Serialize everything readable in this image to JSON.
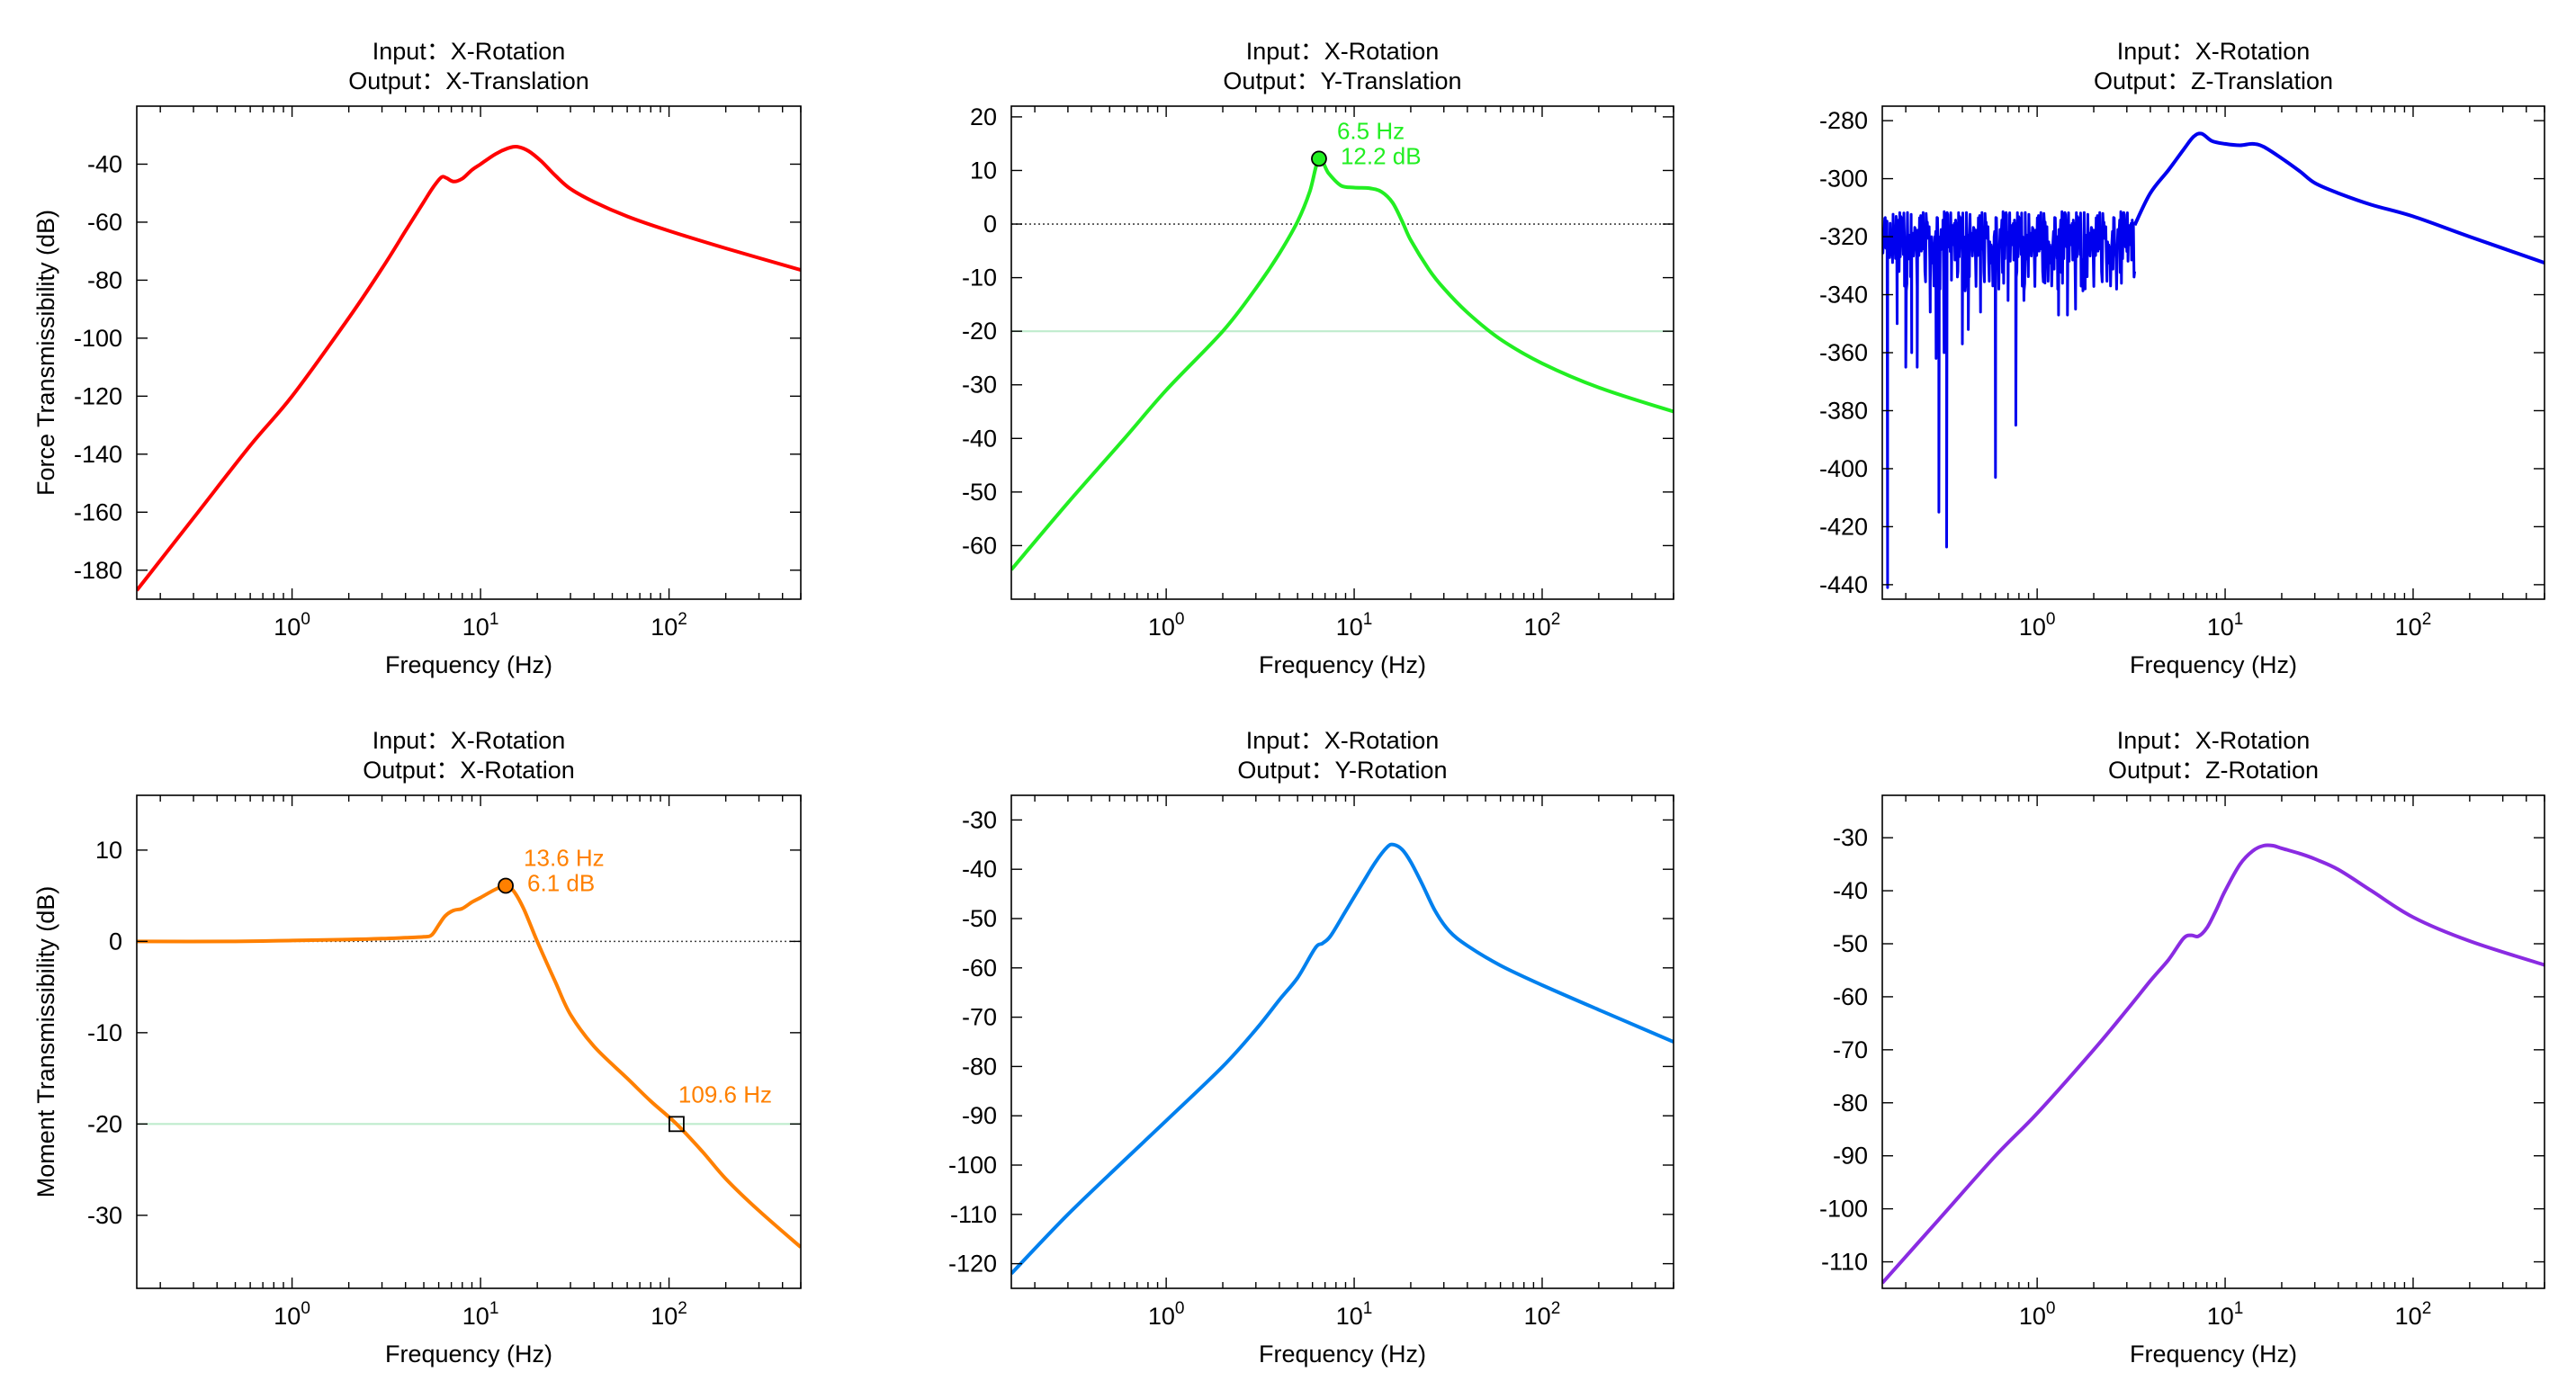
{
  "chart_data": [
    {
      "type": "line",
      "title": [
        "Input：X-Rotation",
        "Output：X-Translation"
      ],
      "xlabel": "Frequency (Hz)",
      "ylabel": "Force Transmissibility  (dB)",
      "x_scale": "log",
      "xlim": [
        0.15,
        500
      ],
      "ylim": [
        -190,
        -20
      ],
      "x_ticks": [
        1,
        10,
        100
      ],
      "y_ticks": [
        -180,
        -160,
        -140,
        -120,
        -100,
        -80,
        -60,
        -40
      ],
      "grid": false,
      "color": "#ff0000",
      "series": [
        {
          "x": [
            0.15,
            0.3,
            0.6,
            1,
            2,
            3,
            4,
            5,
            5.6,
            6.2,
            6.6,
            7.2,
            8,
            9,
            10,
            12,
            14,
            15.7,
            18,
            21,
            25,
            30,
            40,
            60,
            100,
            200,
            500
          ],
          "y": [
            -187,
            -162,
            -137,
            -120,
            -93,
            -76,
            -63,
            -53,
            -48,
            -44.5,
            -44.8,
            -46,
            -45,
            -42,
            -40,
            -36.5,
            -34.5,
            -34,
            -35.5,
            -39,
            -44,
            -48.5,
            -53,
            -58,
            -63,
            -69,
            -76.5
          ]
        }
      ],
      "reference_lines": []
    },
    {
      "type": "line",
      "title": [
        "Input：X-Rotation",
        "Output：Y-Translation"
      ],
      "xlabel": "Frequency (Hz)",
      "ylabel": "",
      "x_scale": "log",
      "xlim": [
        0.15,
        500
      ],
      "ylim": [
        -70,
        22
      ],
      "x_ticks": [
        1,
        10,
        100
      ],
      "y_ticks": [
        -60,
        -50,
        -40,
        -30,
        -20,
        -10,
        0,
        10,
        20
      ],
      "grid": false,
      "color": "#22ee22",
      "series": [
        {
          "x": [
            0.15,
            0.3,
            0.6,
            1,
            2,
            3,
            4,
            5,
            5.8,
            6.5,
            7.3,
            8.5,
            10,
            12,
            14,
            16,
            18,
            20,
            25,
            30,
            40,
            60,
            100,
            200,
            500
          ],
          "y": [
            -64.5,
            -52,
            -40,
            -31,
            -20,
            -12,
            -5.5,
            0.5,
            6,
            12.2,
            9.5,
            7.2,
            6.8,
            6.7,
            6,
            4,
            0.5,
            -3,
            -8.5,
            -12,
            -16.5,
            -21.5,
            -26,
            -30.5,
            -35
          ]
        }
      ],
      "reference_lines": [
        {
          "y": 0,
          "style": "dotted",
          "color": "#444444"
        },
        {
          "y": -20,
          "style": "solid",
          "color": "#bfeccd"
        }
      ],
      "annotations": [
        {
          "x": 6.5,
          "y": 12.2,
          "marker": "circle",
          "lines": [
            "6.5 Hz",
            "12.2 dB"
          ]
        }
      ]
    },
    {
      "type": "line",
      "title": [
        "Input：X-Rotation",
        "Output：Z-Translation"
      ],
      "xlabel": "Frequency (Hz)",
      "ylabel": "",
      "x_scale": "log",
      "xlim": [
        0.15,
        500
      ],
      "ylim": [
        -445,
        -275
      ],
      "x_ticks": [
        1,
        10,
        100
      ],
      "y_ticks": [
        -440,
        -420,
        -400,
        -380,
        -360,
        -340,
        -320,
        -300,
        -280
      ],
      "grid": false,
      "color": "#0000ee",
      "noise": {
        "x_end": 3.3,
        "base": -320,
        "amplitude": 9,
        "spikes": [
          {
            "x": 0.16,
            "y": -441
          },
          {
            "x": 0.18,
            "y": -350
          },
          {
            "x": 0.2,
            "y": -365
          },
          {
            "x": 0.215,
            "y": -360
          },
          {
            "x": 0.23,
            "y": -365
          },
          {
            "x": 0.27,
            "y": -346
          },
          {
            "x": 0.29,
            "y": -362
          },
          {
            "x": 0.3,
            "y": -415
          },
          {
            "x": 0.32,
            "y": -360
          },
          {
            "x": 0.33,
            "y": -427
          },
          {
            "x": 0.35,
            "y": -335
          },
          {
            "x": 0.4,
            "y": -357
          },
          {
            "x": 0.43,
            "y": -352
          },
          {
            "x": 0.5,
            "y": -346
          },
          {
            "x": 0.6,
            "y": -403
          },
          {
            "x": 0.7,
            "y": -342
          },
          {
            "x": 0.77,
            "y": -385
          },
          {
            "x": 0.85,
            "y": -342
          },
          {
            "x": 1.1,
            "y": -336
          },
          {
            "x": 1.3,
            "y": -347
          },
          {
            "x": 1.45,
            "y": -347
          },
          {
            "x": 1.6,
            "y": -345
          },
          {
            "x": 1.8,
            "y": -338
          }
        ]
      },
      "series": [
        {
          "x": [
            3.3,
            4,
            5,
            6,
            6.8,
            7.5,
            8.5,
            10,
            12,
            14,
            16,
            20,
            25,
            30,
            40,
            60,
            100,
            200,
            500
          ],
          "y": [
            -316,
            -305,
            -297,
            -290,
            -285.5,
            -284.5,
            -287,
            -288,
            -288.5,
            -288,
            -289,
            -293,
            -297.5,
            -301.5,
            -305,
            -309,
            -313,
            -320,
            -329
          ]
        }
      ],
      "reference_lines": []
    },
    {
      "type": "line",
      "title": [
        "Input：X-Rotation",
        "Output：X-Rotation"
      ],
      "xlabel": "Frequency (Hz)",
      "ylabel": "Moment Transmissibility  (dB)",
      "x_scale": "log",
      "xlim": [
        0.15,
        500
      ],
      "ylim": [
        -38,
        16
      ],
      "x_ticks": [
        1,
        10,
        100
      ],
      "y_ticks": [
        -30,
        -20,
        -10,
        0,
        10
      ],
      "grid": false,
      "color": "#ff8000",
      "series": [
        {
          "x": [
            0.15,
            0.5,
            1,
            2,
            3,
            4,
            5,
            5.5,
            6,
            6.5,
            7.2,
            8,
            9,
            10,
            12,
            13.6,
            15,
            17,
            20,
            25,
            30,
            40,
            60,
            80,
            109.6,
            150,
            200,
            300,
            500
          ],
          "y": [
            0,
            0,
            0.1,
            0.2,
            0.3,
            0.4,
            0.5,
            0.7,
            1.8,
            2.8,
            3.4,
            3.6,
            4.3,
            4.8,
            5.7,
            6.1,
            5.5,
            3.5,
            0,
            -4.5,
            -8,
            -11.5,
            -15,
            -17.5,
            -20,
            -23,
            -26,
            -29.5,
            -33.5
          ]
        }
      ],
      "reference_lines": [
        {
          "y": 0,
          "style": "dotted",
          "color": "#444444"
        },
        {
          "y": -20,
          "style": "solid",
          "color": "#bfeccd"
        }
      ],
      "annotations": [
        {
          "x": 13.6,
          "y": 6.1,
          "marker": "circle",
          "lines": [
            "13.6 Hz",
            "6.1 dB"
          ]
        },
        {
          "x": 109.6,
          "y": -20,
          "marker": "square",
          "lines": [
            "109.6 Hz"
          ]
        }
      ]
    },
    {
      "type": "line",
      "title": [
        "Input：X-Rotation",
        "Output：Y-Rotation"
      ],
      "xlabel": "Frequency (Hz)",
      "ylabel": "",
      "x_scale": "log",
      "xlim": [
        0.15,
        500
      ],
      "ylim": [
        -125,
        -25
      ],
      "x_ticks": [
        1,
        10,
        100
      ],
      "y_ticks": [
        -120,
        -110,
        -100,
        -90,
        -80,
        -70,
        -60,
        -50,
        -40,
        -30
      ],
      "grid": false,
      "color": "#0080ee",
      "series": [
        {
          "x": [
            0.15,
            0.3,
            0.6,
            1,
            2,
            3,
            4,
            5,
            6.2,
            6.8,
            7.5,
            9,
            11,
            13,
            15,
            16.2,
            18,
            20,
            23,
            27,
            32,
            40,
            60,
            100,
            200,
            500
          ],
          "y": [
            -122,
            -110,
            -99,
            -91,
            -80,
            -72.5,
            -66.5,
            -62,
            -56,
            -55,
            -53.5,
            -48.5,
            -43,
            -38.5,
            -35.5,
            -35,
            -36,
            -38.5,
            -43,
            -48.5,
            -52.5,
            -55.5,
            -59.5,
            -63.5,
            -68.5,
            -75
          ]
        }
      ],
      "reference_lines": []
    },
    {
      "type": "line",
      "title": [
        "Input：X-Rotation",
        "Output：Z-Rotation"
      ],
      "xlabel": "Frequency (Hz)",
      "ylabel": "",
      "x_scale": "log",
      "xlim": [
        0.15,
        500
      ],
      "ylim": [
        -115,
        -22
      ],
      "x_ticks": [
        1,
        10,
        100
      ],
      "y_ticks": [
        -110,
        -100,
        -90,
        -80,
        -70,
        -60,
        -50,
        -40,
        -30
      ],
      "grid": false,
      "color": "#8a2be2",
      "series": [
        {
          "x": [
            0.15,
            0.3,
            0.6,
            1,
            2,
            3,
            4,
            5,
            6,
            6.6,
            7.2,
            8,
            9,
            10,
            12,
            14,
            16,
            18,
            20,
            25,
            30,
            40,
            60,
            100,
            200,
            500
          ],
          "y": [
            -114,
            -102,
            -90,
            -82,
            -70,
            -62.5,
            -57,
            -53,
            -49,
            -48.4,
            -48.6,
            -47,
            -43.5,
            -40,
            -35,
            -32.5,
            -31.5,
            -31.5,
            -32,
            -33,
            -34,
            -36,
            -40,
            -45,
            -49.5,
            -54
          ]
        }
      ],
      "reference_lines": []
    }
  ]
}
